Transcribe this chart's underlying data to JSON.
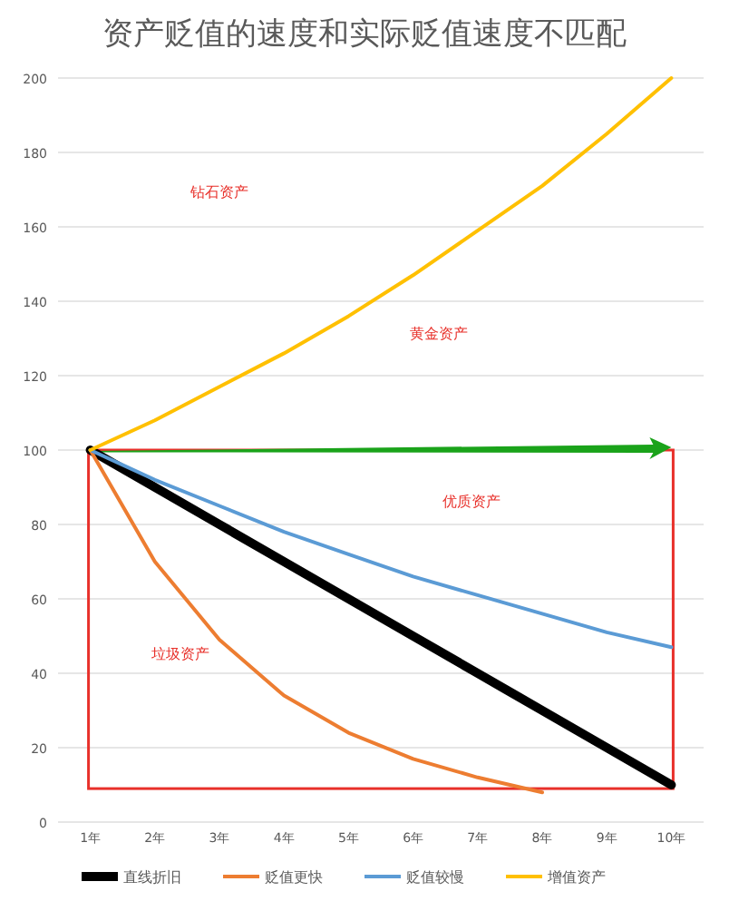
{
  "chart_data": {
    "type": "line",
    "title": "资产贬值的速度和实际贬值速度不匹配",
    "categories": [
      "1年",
      "2年",
      "3年",
      "4年",
      "5年",
      "6年",
      "7年",
      "8年",
      "9年",
      "10年"
    ],
    "series": [
      {
        "name": "直线折旧",
        "color": "#000000",
        "values": [
          100,
          90,
          80,
          70,
          60,
          50,
          40,
          30,
          20,
          10
        ]
      },
      {
        "name": "贬值更快",
        "color": "#ed7d31",
        "values": [
          100,
          70,
          49,
          34,
          24,
          17,
          12,
          8,
          null,
          null
        ]
      },
      {
        "name": "贬值较慢",
        "color": "#5b9bd5",
        "values": [
          100,
          92,
          85,
          78,
          72,
          66,
          61,
          56,
          51,
          47
        ]
      },
      {
        "name": "增值资产",
        "color": "#ffc000",
        "values": [
          100,
          108,
          117,
          126,
          136,
          147,
          159,
          171,
          185,
          200
        ]
      }
    ],
    "ylim": [
      0,
      200
    ],
    "yticks": [
      0,
      20,
      40,
      60,
      80,
      100,
      120,
      140,
      160,
      180,
      200
    ],
    "grid": "y",
    "legend": "bottom",
    "marker": "none",
    "line_style": "solid",
    "annotations": [
      "钻石资产",
      "黄金资产",
      "优质资产",
      "垃圾资产"
    ]
  }
}
